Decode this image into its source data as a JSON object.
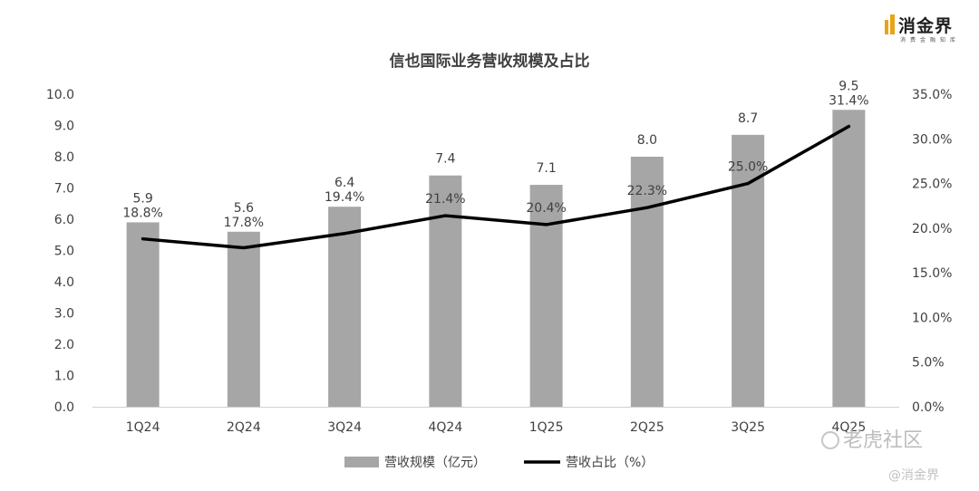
{
  "chart_data": {
    "type": "bar+line",
    "title": "信也国际业务营收规模及占比",
    "categories": [
      "1Q24",
      "2Q24",
      "3Q24",
      "4Q24",
      "1Q25",
      "2Q25",
      "3Q25",
      "4Q25"
    ],
    "series": [
      {
        "name": "营收规模（亿元）",
        "type": "bar",
        "axis": "left",
        "color": "#a6a6a6",
        "values": [
          5.9,
          5.6,
          6.4,
          7.4,
          7.1,
          8.0,
          8.7,
          9.5
        ],
        "labels": [
          "5.9",
          "5.6",
          "6.4",
          "7.4",
          "7.1",
          "8.0",
          "8.7",
          "9.5"
        ]
      },
      {
        "name": "营收占比（%）",
        "type": "line",
        "axis": "right",
        "color": "#000000",
        "values": [
          18.8,
          17.8,
          19.4,
          21.4,
          20.4,
          22.3,
          25.0,
          31.4
        ],
        "labels": [
          "18.8%",
          "17.8%",
          "19.4%",
          "21.4%",
          "20.4%",
          "22.3%",
          "25.0%",
          "31.4%"
        ]
      }
    ],
    "y_left": {
      "ylim": [
        0,
        10
      ],
      "ticks": [
        "0.0",
        "1.0",
        "2.0",
        "3.0",
        "4.0",
        "5.0",
        "6.0",
        "7.0",
        "8.0",
        "9.0",
        "10.0"
      ]
    },
    "y_right": {
      "ylim": [
        0,
        35
      ],
      "ticks": [
        "0.0%",
        "5.0%",
        "10.0%",
        "15.0%",
        "20.0%",
        "25.0%",
        "30.0%",
        "35.0%"
      ]
    },
    "grid": false,
    "legend_position": "bottom-center"
  },
  "branding": {
    "logo_text": "消金界",
    "logo_sub": "消费金融知库",
    "logo_color": "#e8a317",
    "watermark_main": "老虎社区",
    "watermark_handle": "@消金界"
  }
}
